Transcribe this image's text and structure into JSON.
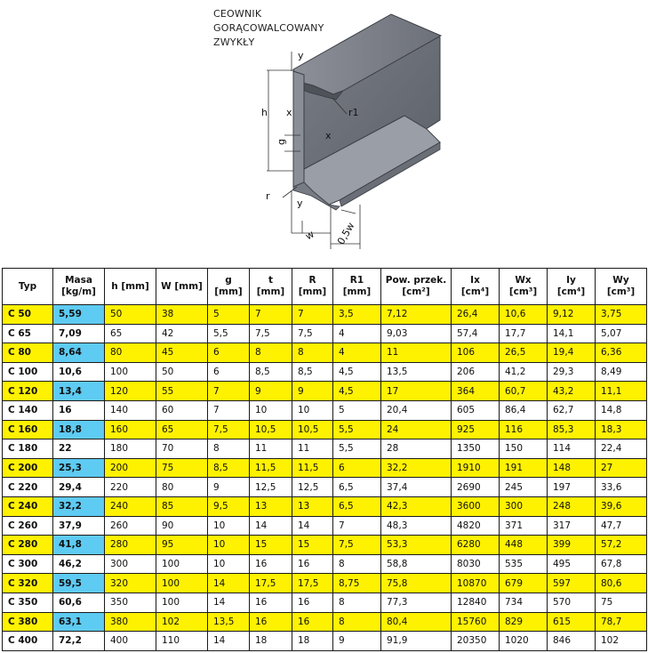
{
  "title_lines": [
    "CEOWNIK",
    "GORĄCOWALCOWANY",
    "ZWYKŁY"
  ],
  "diagram_labels": {
    "y_top": "y",
    "y_bottom": "y",
    "x_left": "x",
    "x_right": "x",
    "h": "h",
    "g": "g",
    "r": "r",
    "r1": "r1",
    "w": "w",
    "half_w": "0,5w"
  },
  "colors": {
    "highlight_row": "#fff200",
    "highlight_mass": "#5ecbf3"
  },
  "table": {
    "headers": [
      [
        "Typ"
      ],
      [
        "Masa",
        "[kg/m]"
      ],
      [
        "h [mm]"
      ],
      [
        "W [mm]"
      ],
      [
        "g",
        "[mm]"
      ],
      [
        "t",
        "[mm]"
      ],
      [
        "R",
        "[mm]"
      ],
      [
        "R1",
        "[mm]"
      ],
      [
        "Pow. przek.",
        "[cm²]"
      ],
      [
        "Ix",
        "[cm⁴]"
      ],
      [
        "Wx",
        "[cm³]"
      ],
      [
        "Iy",
        "[cm⁴]"
      ],
      [
        "Wy",
        "[cm³]"
      ]
    ],
    "rows": [
      {
        "highlight": true,
        "cells": [
          "C 50",
          "5,59",
          "50",
          "38",
          "5",
          "7",
          "7",
          "3,5",
          "7,12",
          "26,4",
          "10,6",
          "9,12",
          "3,75"
        ]
      },
      {
        "highlight": false,
        "cells": [
          "C 65",
          "7,09",
          "65",
          "42",
          "5,5",
          "7,5",
          "7,5",
          "4",
          "9,03",
          "57,4",
          "17,7",
          "14,1",
          "5,07"
        ]
      },
      {
        "highlight": true,
        "cells": [
          "C 80",
          "8,64",
          "80",
          "45",
          "6",
          "8",
          "8",
          "4",
          "11",
          "106",
          "26,5",
          "19,4",
          "6,36"
        ]
      },
      {
        "highlight": false,
        "cells": [
          "C 100",
          "10,6",
          "100",
          "50",
          "6",
          "8,5",
          "8,5",
          "4,5",
          "13,5",
          "206",
          "41,2",
          "29,3",
          "8,49"
        ]
      },
      {
        "highlight": true,
        "cells": [
          "C 120",
          "13,4",
          "120",
          "55",
          "7",
          "9",
          "9",
          "4,5",
          "17",
          "364",
          "60,7",
          "43,2",
          "11,1"
        ]
      },
      {
        "highlight": false,
        "cells": [
          "C 140",
          "16",
          "140",
          "60",
          "7",
          "10",
          "10",
          "5",
          "20,4",
          "605",
          "86,4",
          "62,7",
          "14,8"
        ]
      },
      {
        "highlight": true,
        "cells": [
          "C 160",
          "18,8",
          "160",
          "65",
          "7,5",
          "10,5",
          "10,5",
          "5,5",
          "24",
          "925",
          "116",
          "85,3",
          "18,3"
        ]
      },
      {
        "highlight": false,
        "cells": [
          "C 180",
          "22",
          "180",
          "70",
          "8",
          "11",
          "11",
          "5,5",
          "28",
          "1350",
          "150",
          "114",
          "22,4"
        ]
      },
      {
        "highlight": true,
        "cells": [
          "C 200",
          "25,3",
          "200",
          "75",
          "8,5",
          "11,5",
          "11,5",
          "6",
          "32,2",
          "1910",
          "191",
          "148",
          "27"
        ]
      },
      {
        "highlight": false,
        "cells": [
          "C 220",
          "29,4",
          "220",
          "80",
          "9",
          "12,5",
          "12,5",
          "6,5",
          "37,4",
          "2690",
          "245",
          "197",
          "33,6"
        ]
      },
      {
        "highlight": true,
        "cells": [
          "C 240",
          "32,2",
          "240",
          "85",
          "9,5",
          "13",
          "13",
          "6,5",
          "42,3",
          "3600",
          "300",
          "248",
          "39,6"
        ]
      },
      {
        "highlight": false,
        "cells": [
          "C 260",
          "37,9",
          "260",
          "90",
          "10",
          "14",
          "14",
          "7",
          "48,3",
          "4820",
          "371",
          "317",
          "47,7"
        ]
      },
      {
        "highlight": true,
        "cells": [
          "C 280",
          "41,8",
          "280",
          "95",
          "10",
          "15",
          "15",
          "7,5",
          "53,3",
          "6280",
          "448",
          "399",
          "57,2"
        ]
      },
      {
        "highlight": false,
        "cells": [
          "C 300",
          "46,2",
          "300",
          "100",
          "10",
          "16",
          "16",
          "8",
          "58,8",
          "8030",
          "535",
          "495",
          "67,8"
        ]
      },
      {
        "highlight": true,
        "cells": [
          "C 320",
          "59,5",
          "320",
          "100",
          "14",
          "17,5",
          "17,5",
          "8,75",
          "75,8",
          "10870",
          "679",
          "597",
          "80,6"
        ]
      },
      {
        "highlight": false,
        "cells": [
          "C 350",
          "60,6",
          "350",
          "100",
          "14",
          "16",
          "16",
          "8",
          "77,3",
          "12840",
          "734",
          "570",
          "75"
        ]
      },
      {
        "highlight": true,
        "cells": [
          "C 380",
          "63,1",
          "380",
          "102",
          "13,5",
          "16",
          "16",
          "8",
          "80,4",
          "15760",
          "829",
          "615",
          "78,7"
        ]
      },
      {
        "highlight": false,
        "cells": [
          "C 400",
          "72,2",
          "400",
          "110",
          "14",
          "18",
          "18",
          "9",
          "91,9",
          "20350",
          "1020",
          "846",
          "102"
        ]
      }
    ]
  }
}
